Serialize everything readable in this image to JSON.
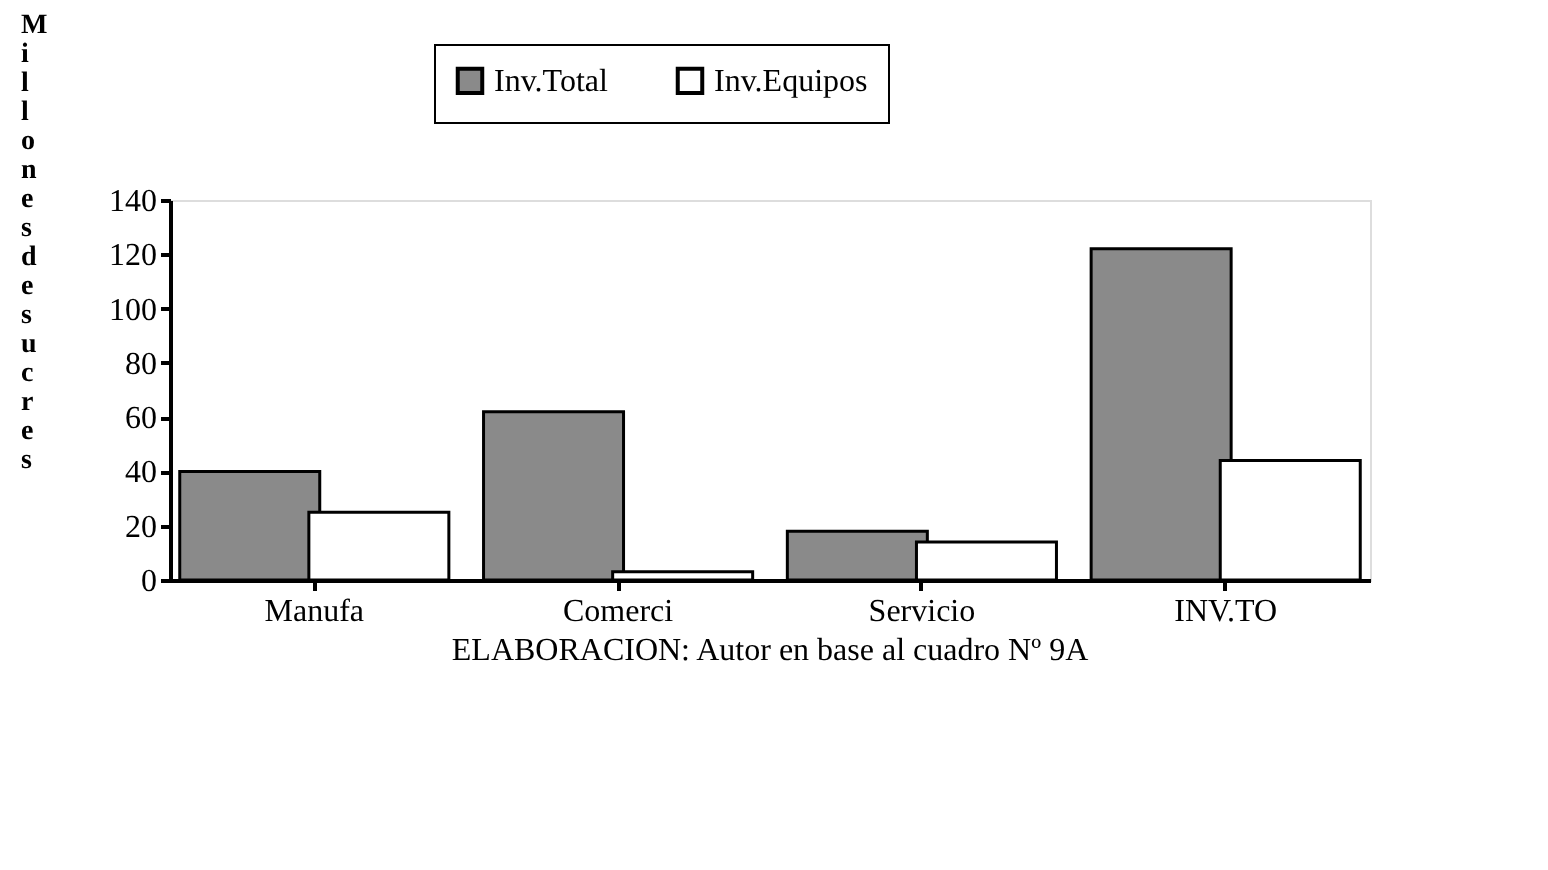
{
  "chart_data": {
    "type": "bar",
    "ylabel": "Millones de sucres",
    "categories": [
      "Manufa",
      "Comerci",
      "Servicio",
      "INV.TO"
    ],
    "series": [
      {
        "name": "Inv.Total",
        "color": "#8a8a8a",
        "values": [
          40,
          62,
          18,
          122
        ]
      },
      {
        "name": "Inv.Equipos",
        "color": "#ffffff",
        "values": [
          25,
          3,
          14,
          44
        ]
      }
    ],
    "ylim": [
      0,
      140
    ],
    "yticks": [
      0,
      20,
      40,
      60,
      80,
      100,
      120,
      140
    ],
    "grid": false,
    "legend": "top",
    "annotations": [
      "ELABORACION: Autor en base al cuadro Nº 9A"
    ]
  }
}
